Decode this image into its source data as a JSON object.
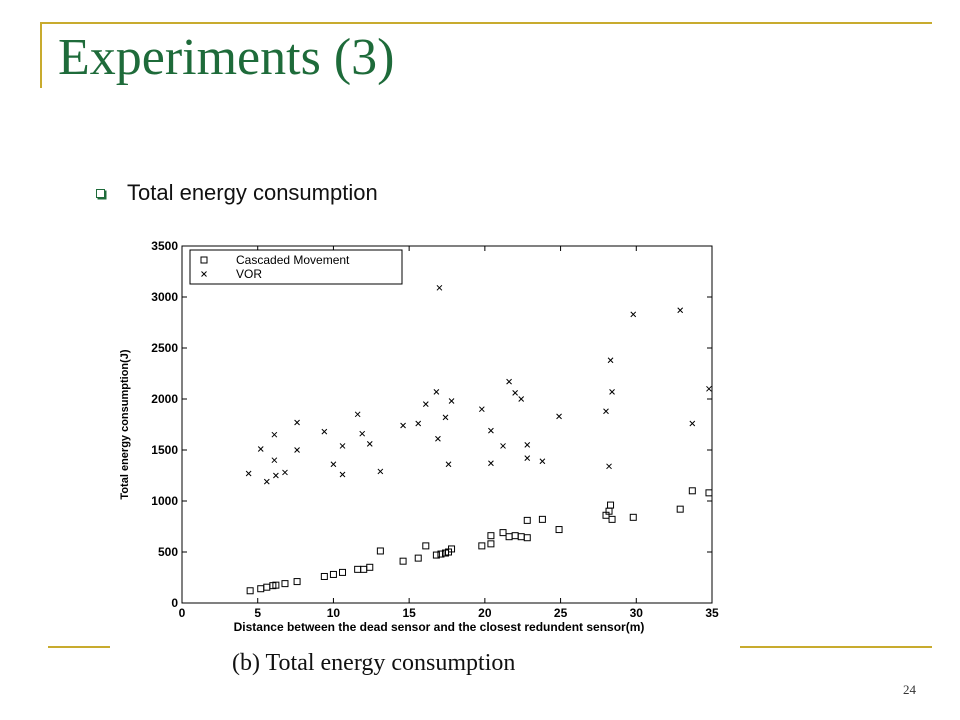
{
  "slide": {
    "title": "Experiments (3)",
    "bullet": "Total energy consumption",
    "caption": "(b)  Total energy consumption",
    "page_number": "24",
    "accent_color": "#c8ab2e",
    "title_color": "#1e6b3a"
  },
  "chart_data": {
    "type": "scatter",
    "xlabel": "Distance between the dead sensor and the closest redundent sensor(m)",
    "ylabel": "Total energy consumption(J)",
    "xlim": [
      0,
      35
    ],
    "ylim": [
      0,
      3500
    ],
    "x_ticks": [
      0,
      5,
      10,
      15,
      20,
      25,
      30,
      35
    ],
    "y_ticks": [
      0,
      500,
      1000,
      1500,
      2000,
      2500,
      3000,
      3500
    ],
    "legend_position": "top-left",
    "series": [
      {
        "name": "Cascaded Movement",
        "marker": "square",
        "points": [
          [
            4.5,
            120
          ],
          [
            5.2,
            140
          ],
          [
            5.6,
            155
          ],
          [
            6.0,
            170
          ],
          [
            6.2,
            175
          ],
          [
            6.8,
            190
          ],
          [
            7.6,
            210
          ],
          [
            9.4,
            260
          ],
          [
            10.0,
            280
          ],
          [
            10.6,
            300
          ],
          [
            11.6,
            330
          ],
          [
            12.0,
            330
          ],
          [
            12.4,
            350
          ],
          [
            13.1,
            510
          ],
          [
            14.6,
            410
          ],
          [
            15.6,
            440
          ],
          [
            16.1,
            560
          ],
          [
            16.8,
            470
          ],
          [
            17.1,
            480
          ],
          [
            17.4,
            490
          ],
          [
            17.6,
            500
          ],
          [
            17.8,
            530
          ],
          [
            19.8,
            560
          ],
          [
            20.4,
            580
          ],
          [
            20.4,
            660
          ],
          [
            21.2,
            690
          ],
          [
            21.6,
            650
          ],
          [
            22.0,
            660
          ],
          [
            22.4,
            650
          ],
          [
            22.8,
            640
          ],
          [
            22.8,
            810
          ],
          [
            23.8,
            820
          ],
          [
            24.9,
            720
          ],
          [
            28.0,
            860
          ],
          [
            28.2,
            900
          ],
          [
            28.3,
            960
          ],
          [
            28.4,
            820
          ],
          [
            29.8,
            840
          ],
          [
            32.9,
            920
          ],
          [
            33.7,
            1100
          ],
          [
            34.8,
            1080
          ]
        ]
      },
      {
        "name": "VOR",
        "marker": "x",
        "points": [
          [
            4.4,
            1270
          ],
          [
            5.2,
            1510
          ],
          [
            5.6,
            1190
          ],
          [
            6.1,
            1650
          ],
          [
            6.1,
            1400
          ],
          [
            6.2,
            1250
          ],
          [
            6.8,
            1280
          ],
          [
            7.6,
            1500
          ],
          [
            7.6,
            1770
          ],
          [
            9.4,
            1680
          ],
          [
            10.0,
            1360
          ],
          [
            10.6,
            1540
          ],
          [
            10.6,
            1260
          ],
          [
            11.6,
            1850
          ],
          [
            11.9,
            1660
          ],
          [
            12.4,
            1560
          ],
          [
            13.1,
            1290
          ],
          [
            14.6,
            1740
          ],
          [
            15.6,
            1760
          ],
          [
            16.1,
            1950
          ],
          [
            16.8,
            2070
          ],
          [
            16.9,
            1610
          ],
          [
            17.0,
            3090
          ],
          [
            17.4,
            1820
          ],
          [
            17.6,
            1360
          ],
          [
            17.8,
            1980
          ],
          [
            19.8,
            1900
          ],
          [
            20.4,
            1690
          ],
          [
            20.4,
            1370
          ],
          [
            21.2,
            1540
          ],
          [
            21.6,
            2170
          ],
          [
            22.0,
            2060
          ],
          [
            22.4,
            2000
          ],
          [
            22.8,
            1550
          ],
          [
            22.8,
            1420
          ],
          [
            23.8,
            1390
          ],
          [
            24.9,
            1830
          ],
          [
            28.0,
            1880
          ],
          [
            28.2,
            1340
          ],
          [
            28.3,
            2380
          ],
          [
            28.4,
            2070
          ],
          [
            29.8,
            2830
          ],
          [
            32.9,
            2870
          ],
          [
            33.7,
            1760
          ],
          [
            34.8,
            2100
          ]
        ]
      }
    ]
  }
}
